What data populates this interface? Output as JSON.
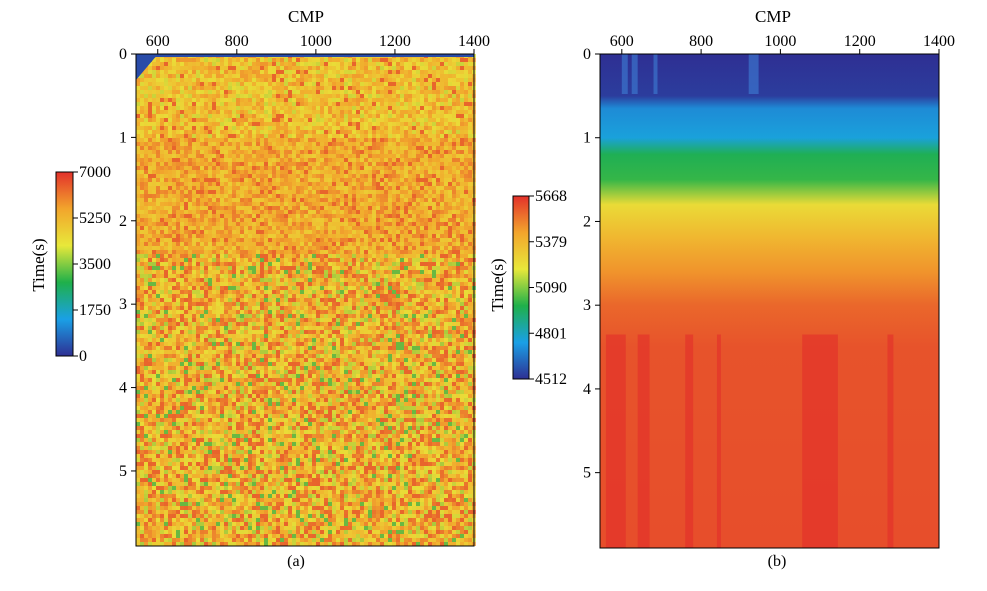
{
  "chart_data": [
    {
      "id": "a",
      "type": "heatmap",
      "panel_label": "(a)",
      "x_axis": {
        "label": "CMP",
        "position": "top",
        "ticks": [
          600,
          800,
          1000,
          1200,
          1400
        ],
        "range": [
          545,
          1400
        ]
      },
      "y_axis": {
        "label": "Time(s)",
        "ticks": [
          0,
          1,
          2,
          3,
          4,
          5
        ],
        "range": [
          0,
          5.9
        ],
        "inverted": true
      },
      "colorbar": {
        "min": 0,
        "max": 7000,
        "ticks": [
          0,
          1750,
          3500,
          5250,
          7000
        ],
        "label": ""
      },
      "colormap": [
        "#2e2f93",
        "#1aa0e6",
        "#1fb04a",
        "#e8e83a",
        "#f2a52c",
        "#e3312b"
      ],
      "description_values": {
        "background_level": 5200,
        "noise_speckle_low": 3500,
        "noise_speckle_high": 6900
      }
    },
    {
      "id": "b",
      "type": "heatmap",
      "panel_label": "(b)",
      "x_axis": {
        "label": "CMP",
        "position": "top",
        "ticks": [
          600,
          800,
          1000,
          1200,
          1400
        ],
        "range": [
          545,
          1400
        ]
      },
      "y_axis": {
        "label": "Time(s)",
        "ticks": [
          0,
          1,
          2,
          3,
          4,
          5
        ],
        "range": [
          0,
          5.9
        ],
        "inverted": true
      },
      "colorbar": {
        "min": 4512,
        "max": 5668,
        "ticks": [
          4512,
          4801,
          5090,
          5379,
          5668
        ],
        "label": "Time(s)"
      },
      "colormap": [
        "#2e2f93",
        "#1aa0e6",
        "#1fb04a",
        "#e8e83a",
        "#f2a52c",
        "#e3312b"
      ],
      "time_profile": [
        {
          "t": 0.0,
          "v": 4512
        },
        {
          "t": 0.5,
          "v": 4540
        },
        {
          "t": 0.65,
          "v": 4700
        },
        {
          "t": 1.0,
          "v": 4760
        },
        {
          "t": 1.2,
          "v": 4960
        },
        {
          "t": 1.5,
          "v": 5000
        },
        {
          "t": 1.8,
          "v": 5250
        },
        {
          "t": 2.2,
          "v": 5379
        },
        {
          "t": 2.6,
          "v": 5470
        },
        {
          "t": 3.0,
          "v": 5560
        },
        {
          "t": 3.5,
          "v": 5600
        },
        {
          "t": 5.9,
          "v": 5610
        }
      ],
      "high_velocity_bands": [
        {
          "cmp_start": 560,
          "cmp_end": 610
        },
        {
          "cmp_start": 640,
          "cmp_end": 670
        },
        {
          "cmp_start": 760,
          "cmp_end": 780
        },
        {
          "cmp_start": 840,
          "cmp_end": 850
        },
        {
          "cmp_start": 1055,
          "cmp_end": 1145
        },
        {
          "cmp_start": 1270,
          "cmp_end": 1285
        }
      ]
    }
  ]
}
